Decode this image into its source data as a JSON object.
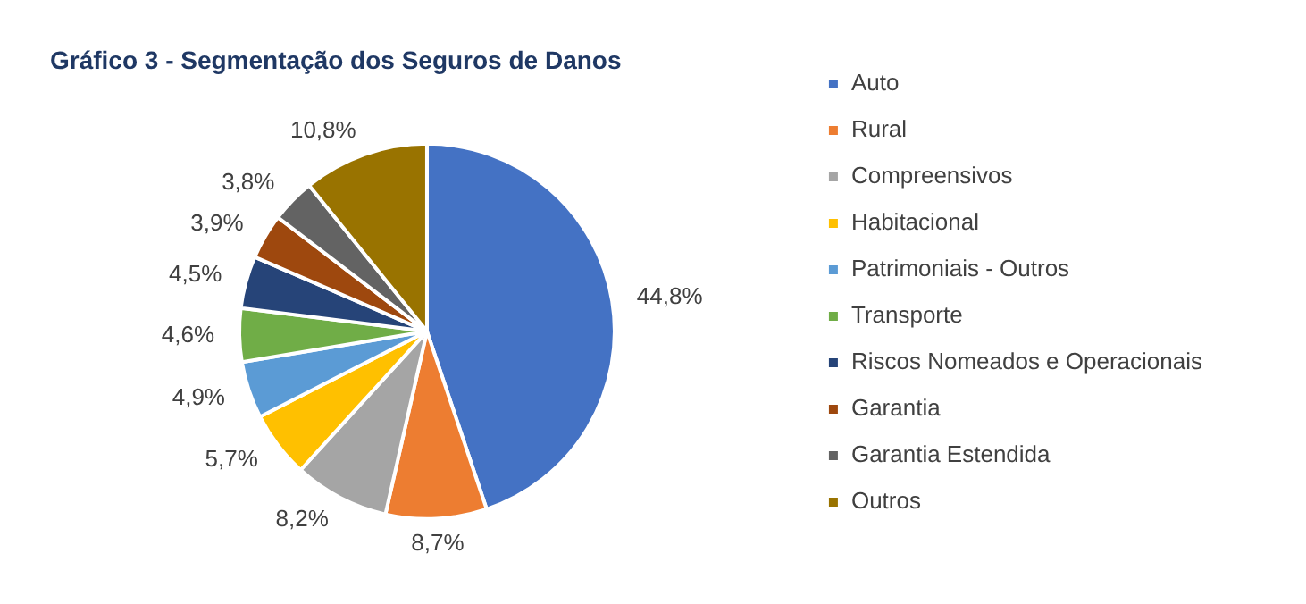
{
  "chart_data": {
    "type": "pie",
    "title": "Gráfico 3 - Segmentação dos Seguros de Danos",
    "categories": [
      "Auto",
      "Rural",
      "Compreensivos",
      "Habitacional",
      "Patrimoniais - Outros",
      "Transporte",
      "Riscos Nomeados e Operacionais",
      "Garantia",
      "Garantia Estendida",
      "Outros"
    ],
    "values": [
      44.8,
      8.7,
      8.2,
      5.7,
      4.9,
      4.6,
      4.5,
      3.9,
      3.8,
      10.8
    ],
    "value_labels": [
      "44,8%",
      "8,7%",
      "8,2%",
      "5,7%",
      "4,9%",
      "4,6%",
      "4,5%",
      "3,9%",
      "3,8%",
      "10,8%"
    ],
    "colors": [
      "#4472c4",
      "#ed7d31",
      "#a5a5a5",
      "#ffc000",
      "#5b9bd5",
      "#70ad47",
      "#264478",
      "#9e480e",
      "#636363",
      "#997300"
    ],
    "legend": "right"
  }
}
